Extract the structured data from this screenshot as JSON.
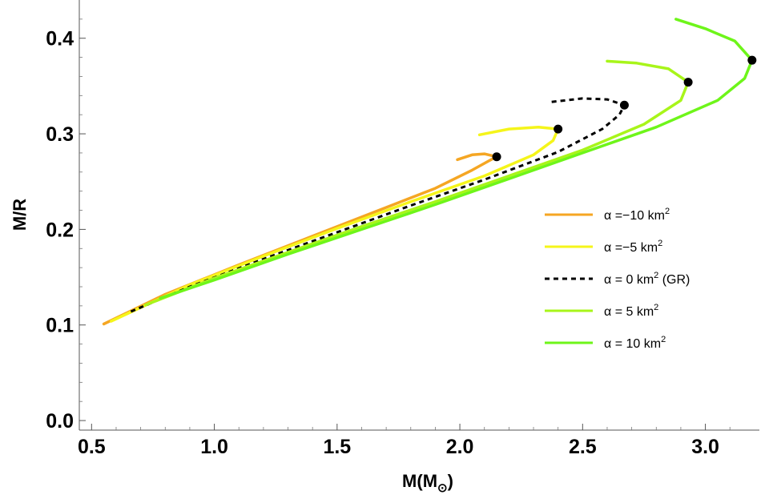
{
  "chart_data": {
    "type": "line",
    "xlabel": "M(M",
    "xlabel_sub": "⊙",
    "xlabel_close": ")",
    "ylabel": "M/R",
    "xlim": [
      0.45,
      3.22
    ],
    "ylim": [
      -0.01,
      0.44
    ],
    "xticks": [
      0.5,
      1.0,
      1.5,
      2.0,
      2.5,
      3.0
    ],
    "xtick_labels": [
      "0.5",
      "1.0",
      "1.5",
      "2.0",
      "2.5",
      "3.0"
    ],
    "yticks": [
      0.0,
      0.1,
      0.2,
      0.3,
      0.4
    ],
    "ytick_labels": [
      "0.0",
      "0.1",
      "0.2",
      "0.3",
      "0.4"
    ],
    "grid": false,
    "legend_position": "right",
    "series": [
      {
        "name": "α =−10 km",
        "sup": "2",
        "suffix": "",
        "color": "#F5A623",
        "dash": "solid",
        "x": [
          0.55,
          0.8,
          1.1,
          1.4,
          1.7,
          1.9,
          2.05,
          2.12,
          2.15,
          2.1,
          2.05,
          1.99
        ],
        "y": [
          0.101,
          0.132,
          0.163,
          0.193,
          0.223,
          0.243,
          0.262,
          0.272,
          0.276,
          0.279,
          0.278,
          0.273
        ],
        "max_point": [
          2.15,
          0.276
        ]
      },
      {
        "name": "α =−5 km",
        "sup": "2",
        "suffix": "",
        "color": "#F5F51A",
        "dash": "solid",
        "x": [
          0.58,
          0.9,
          1.2,
          1.5,
          1.8,
          2.1,
          2.3,
          2.38,
          2.4,
          2.32,
          2.2,
          2.08
        ],
        "y": [
          0.104,
          0.142,
          0.172,
          0.201,
          0.229,
          0.256,
          0.278,
          0.293,
          0.305,
          0.307,
          0.305,
          0.299
        ],
        "max_point": [
          2.4,
          0.305
        ]
      },
      {
        "name": "α = 0 km",
        "sup": "2",
        "suffix": " (GR)",
        "color": "#000000",
        "dash": "dashed",
        "x": [
          0.66,
          0.9,
          1.2,
          1.5,
          1.8,
          2.1,
          2.4,
          2.58,
          2.65,
          2.67,
          2.6,
          2.5,
          2.36
        ],
        "y": [
          0.114,
          0.14,
          0.169,
          0.197,
          0.225,
          0.252,
          0.281,
          0.305,
          0.32,
          0.33,
          0.336,
          0.337,
          0.333
        ],
        "max_point": [
          2.67,
          0.33
        ]
      },
      {
        "name": "α = 5 km",
        "sup": "2",
        "suffix": "",
        "color": "#A8F51A",
        "dash": "solid",
        "x": [
          0.72,
          1.0,
          1.3,
          1.6,
          1.9,
          2.2,
          2.5,
          2.75,
          2.9,
          2.93,
          2.85,
          2.72,
          2.6
        ],
        "y": [
          0.121,
          0.149,
          0.176,
          0.203,
          0.229,
          0.256,
          0.283,
          0.31,
          0.335,
          0.354,
          0.368,
          0.374,
          0.376
        ],
        "max_point": [
          2.93,
          0.354
        ]
      },
      {
        "name": "α = 10 km",
        "sup": "2",
        "suffix": "",
        "color": "#6EF51A",
        "dash": "solid",
        "x": [
          0.78,
          1.0,
          1.3,
          1.6,
          1.9,
          2.2,
          2.5,
          2.8,
          3.05,
          3.16,
          3.19,
          3.12,
          3.0,
          2.88
        ],
        "y": [
          0.128,
          0.147,
          0.174,
          0.2,
          0.226,
          0.253,
          0.28,
          0.307,
          0.335,
          0.358,
          0.377,
          0.397,
          0.41,
          0.42
        ],
        "max_point": [
          3.19,
          0.377
        ]
      }
    ]
  }
}
